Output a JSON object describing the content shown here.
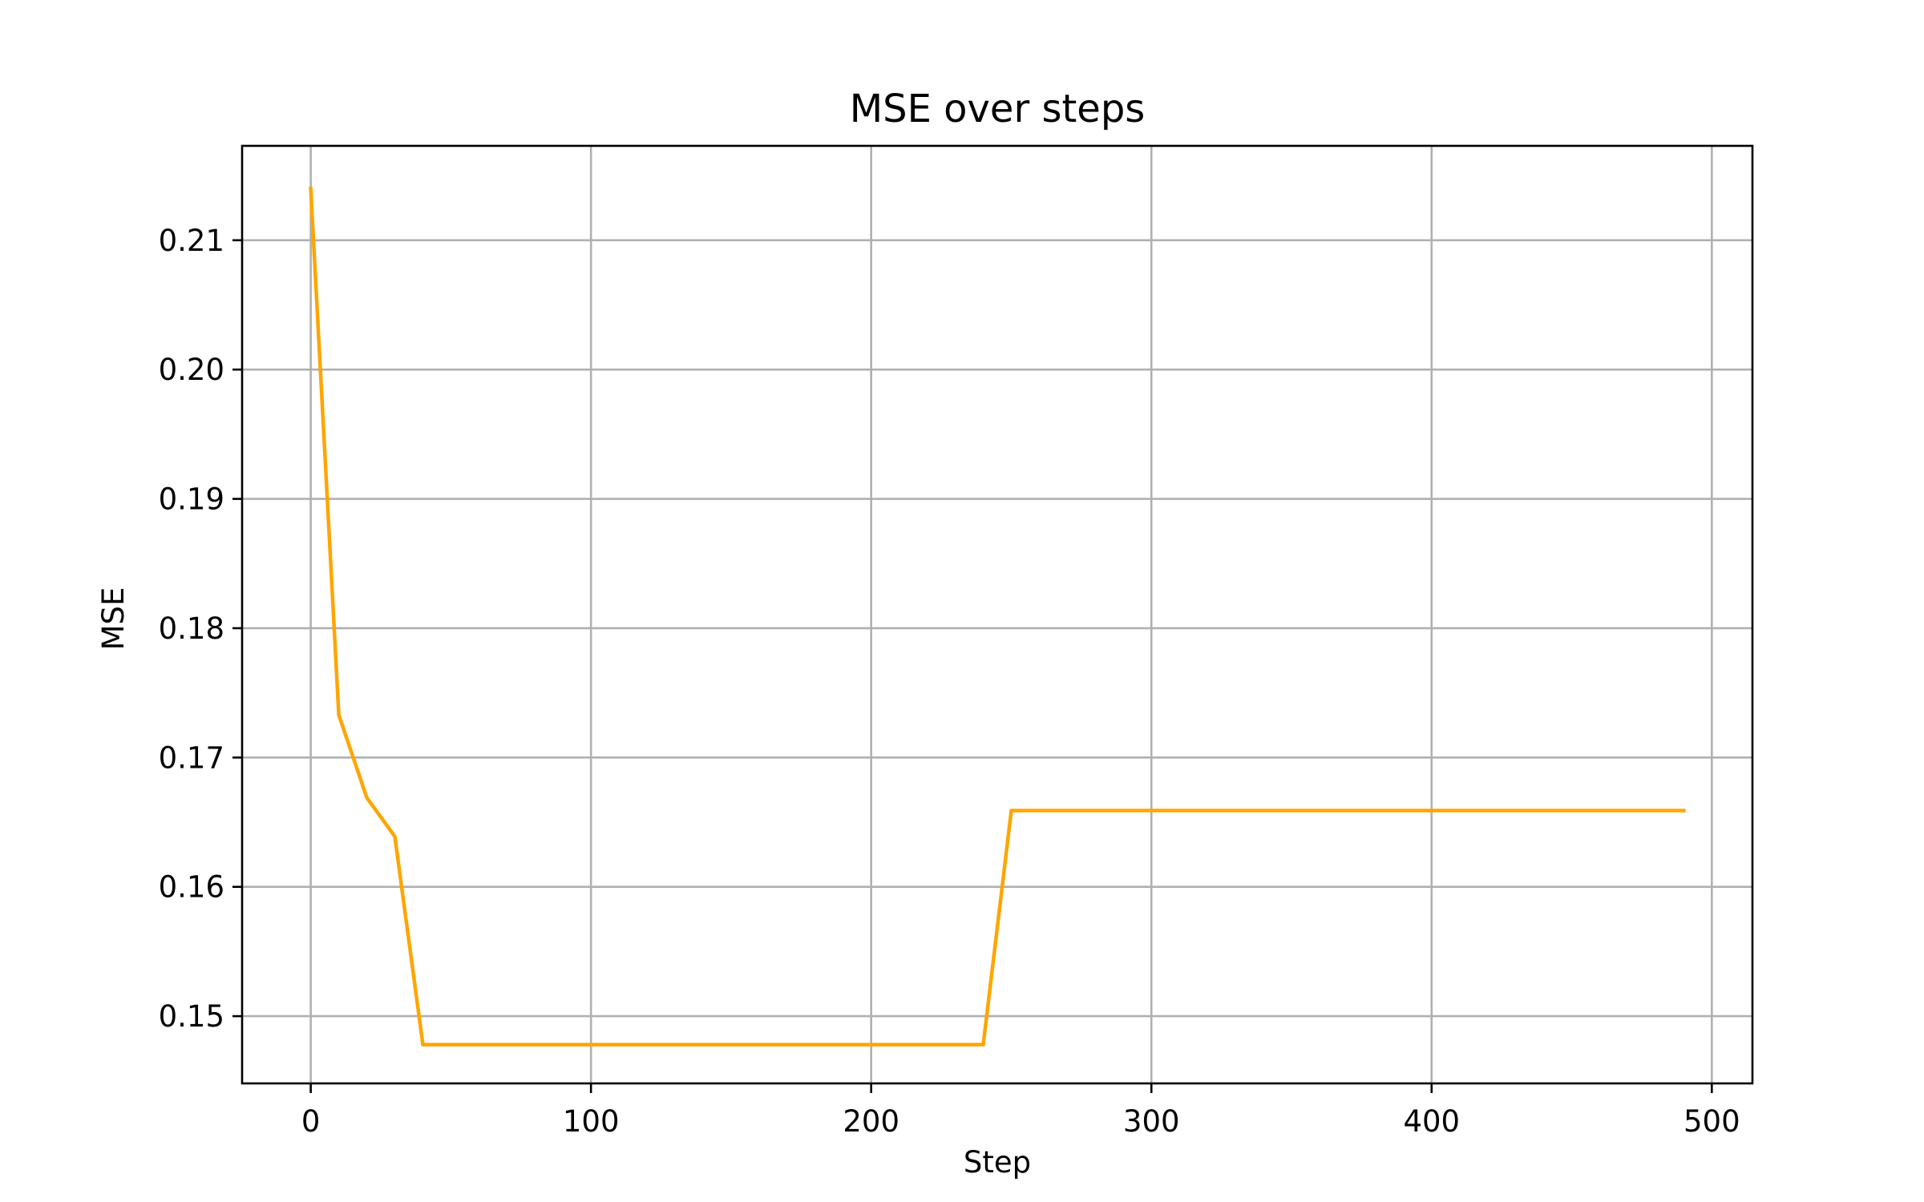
{
  "chart_data": {
    "type": "line",
    "title": "MSE over steps",
    "xlabel": "Step",
    "ylabel": "MSE",
    "xlim": [
      -24.5,
      514.5
    ],
    "ylim": [
      0.1448,
      0.2173
    ],
    "xticks": [
      0,
      100,
      200,
      300,
      400,
      500
    ],
    "yticks": [
      0.15,
      0.16,
      0.17,
      0.18,
      0.19,
      0.2,
      0.21
    ],
    "xtick_labels": [
      "0",
      "100",
      "200",
      "300",
      "400",
      "500"
    ],
    "ytick_labels": [
      "0.15",
      "0.16",
      "0.17",
      "0.18",
      "0.19",
      "0.20",
      "0.21"
    ],
    "grid": true,
    "legend": "none",
    "series": [
      {
        "color": "#ffa500",
        "x": [
          0,
          10,
          20,
          30,
          40,
          50,
          60,
          70,
          80,
          90,
          100,
          110,
          120,
          130,
          140,
          150,
          160,
          170,
          180,
          190,
          200,
          210,
          220,
          230,
          240,
          250,
          260,
          270,
          280,
          290,
          300,
          310,
          320,
          330,
          340,
          350,
          360,
          370,
          380,
          390,
          400,
          410,
          420,
          430,
          440,
          450,
          460,
          470,
          480,
          490
        ],
        "y": [
          0.214,
          0.1733,
          0.1669,
          0.1639,
          0.1478,
          0.1478,
          0.1478,
          0.1478,
          0.1478,
          0.1478,
          0.1478,
          0.1478,
          0.1478,
          0.1478,
          0.1478,
          0.1478,
          0.1478,
          0.1478,
          0.1478,
          0.1478,
          0.1478,
          0.1478,
          0.1478,
          0.1478,
          0.1478,
          0.1659,
          0.1659,
          0.1659,
          0.1659,
          0.1659,
          0.1659,
          0.1659,
          0.1659,
          0.1659,
          0.1659,
          0.1659,
          0.1659,
          0.1659,
          0.1659,
          0.1659,
          0.1659,
          0.1659,
          0.1659,
          0.1659,
          0.1659,
          0.1659,
          0.1659,
          0.1659,
          0.1659,
          0.1659
        ]
      }
    ]
  }
}
